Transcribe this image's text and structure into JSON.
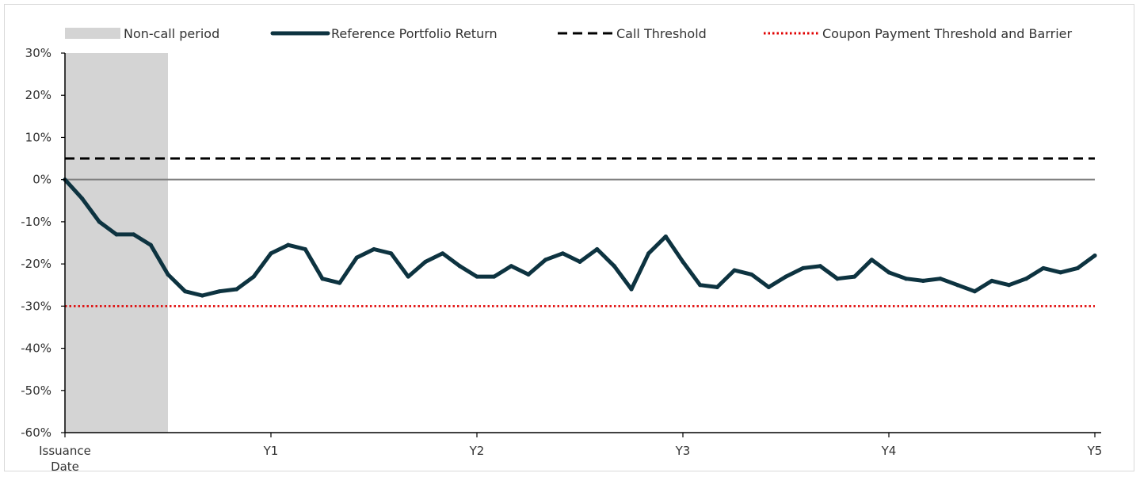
{
  "chart_data": {
    "type": "line",
    "title": "",
    "xlabel": "",
    "ylabel": "",
    "x_tick_labels": [
      "Issuance Date",
      "Y1",
      "Y2",
      "Y3",
      "Y4",
      "Y5"
    ],
    "x_range_years": [
      0,
      5
    ],
    "ylim": [
      -60,
      30
    ],
    "y_ticks": [
      30,
      20,
      10,
      0,
      -10,
      -20,
      -30,
      -40,
      -50,
      -60
    ],
    "y_tick_format": "percent",
    "shaded_period": {
      "name": "Non-call period",
      "from_year": 0,
      "to_year": 0.5,
      "color": "#d4d4d4"
    },
    "series": [
      {
        "name": "Reference Portfolio Return",
        "color": "#0d3340",
        "style": "solid",
        "x_years": [
          0,
          0.0833,
          0.1667,
          0.25,
          0.3333,
          0.4167,
          0.5,
          0.5833,
          0.6667,
          0.75,
          0.8333,
          0.9167,
          1.0,
          1.0833,
          1.1667,
          1.25,
          1.3333,
          1.4167,
          1.5,
          1.5833,
          1.6667,
          1.75,
          1.8333,
          1.9167,
          2.0,
          2.0833,
          2.1667,
          2.25,
          2.3333,
          2.4167,
          2.5,
          2.5833,
          2.6667,
          2.75,
          2.8333,
          2.9167,
          3.0,
          3.0833,
          3.1667,
          3.25,
          3.3333,
          3.4167,
          3.5,
          3.5833,
          3.6667,
          3.75,
          3.8333,
          3.9167,
          4.0,
          4.0833,
          4.1667,
          4.25,
          4.3333,
          4.4167,
          4.5,
          4.5833,
          4.6667,
          4.75,
          4.8333,
          4.9167,
          5.0
        ],
        "values": [
          0,
          -4.5,
          -10,
          -13,
          -13,
          -15.5,
          -22.5,
          -26.5,
          -27.5,
          -26.5,
          -26,
          -23,
          -17.5,
          -15.5,
          -16.5,
          -23.5,
          -24.5,
          -18.5,
          -16.5,
          -17.5,
          -23,
          -19.5,
          -17.5,
          -20.5,
          -23,
          -23,
          -20.5,
          -22.5,
          -19,
          -17.5,
          -19.5,
          -16.5,
          -20.5,
          -26,
          -17.5,
          -13.5,
          -19.5,
          -25,
          -25.5,
          -21.5,
          -22.5,
          -25.5,
          -23,
          -21,
          -20.5,
          -23.5,
          -23,
          -19,
          -22,
          -23.5,
          -24,
          -23.5,
          -25,
          -26.5,
          -24,
          -25,
          -23.5,
          -21,
          -22,
          -21,
          -18
        ]
      },
      {
        "name": "Call Threshold",
        "color": "#000000",
        "style": "dashed",
        "constant_value": 5
      },
      {
        "name": "Coupon Payment Threshold and Barrier",
        "color": "#e00000",
        "style": "dotted",
        "constant_value": -30
      }
    ],
    "reference_line": {
      "value": 0,
      "color": "#808080"
    },
    "legend_position": "top",
    "grid": false
  }
}
